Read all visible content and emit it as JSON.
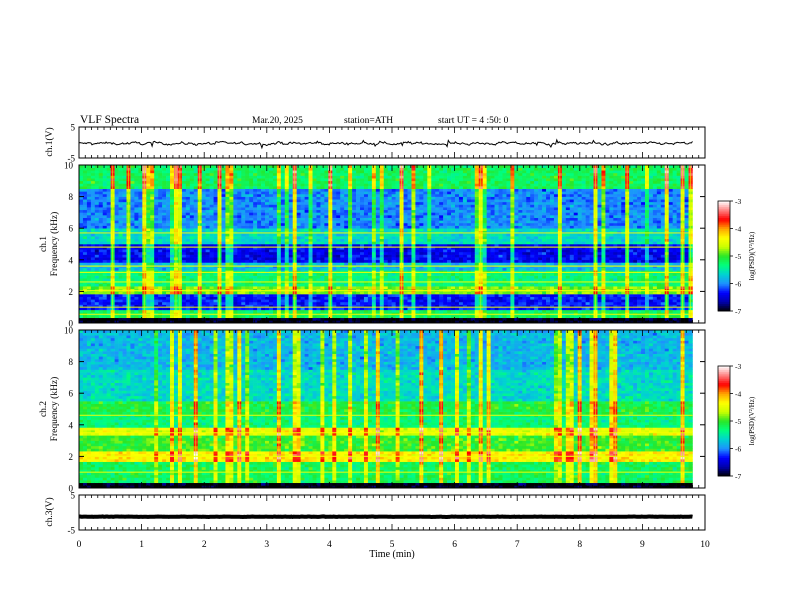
{
  "header": {
    "title": "VLF  Spectra",
    "date": "Mar.20, 2025",
    "station": "station=ATH",
    "start_time": "start  UT  =   4  :50: 0"
  },
  "chart_data": [
    {
      "type": "line",
      "panel": "ch1-waveform",
      "ylabel": "ch.1(V)",
      "ylim": [
        -5,
        5
      ],
      "yticks": [
        "5",
        "-5"
      ],
      "xlim": [
        0,
        10
      ],
      "series": [
        {
          "x_range": [
            0,
            9.8
          ],
          "typical_y": -0.3,
          "spread": 1.5
        }
      ]
    },
    {
      "type": "heatmap",
      "panel": "ch1-spectrogram",
      "ylabel": "ch.1\nFrequency  (kHz)",
      "ylim": [
        0,
        10
      ],
      "yticks": [
        "0",
        "2",
        "4",
        "6",
        "8",
        "10"
      ],
      "xlim": [
        0,
        10
      ],
      "data_x_range": [
        0,
        9.8
      ],
      "colorbar": {
        "label": "log(PSD)(V²/Hz)",
        "range": [
          -7,
          -3
        ],
        "ticks": [
          "-3",
          "-4",
          "-5",
          "-6",
          "-7"
        ]
      },
      "band_levels_log_psd": [
        {
          "f": [
            0.0,
            0.3
          ],
          "level": -7.0
        },
        {
          "f": [
            0.3,
            0.9
          ],
          "level": -5.2
        },
        {
          "f": [
            0.9,
            1.9
          ],
          "level": -6.3
        },
        {
          "f": [
            1.9,
            2.3
          ],
          "level": -4.8
        },
        {
          "f": [
            2.3,
            3.3
          ],
          "level": -5.3
        },
        {
          "f": [
            3.3,
            3.9
          ],
          "level": -5.8
        },
        {
          "f": [
            3.9,
            5.0
          ],
          "level": -6.4
        },
        {
          "f": [
            5.0,
            6.0
          ],
          "level": -5.6
        },
        {
          "f": [
            6.0,
            8.5
          ],
          "level": -6.0
        },
        {
          "f": [
            8.5,
            10.0
          ],
          "level": -5.2
        }
      ],
      "lines_khz": [
        0.55,
        1.0,
        2.05,
        2.6,
        3.2,
        3.6,
        4.8,
        5.7
      ]
    },
    {
      "type": "heatmap",
      "panel": "ch2-spectrogram",
      "ylabel": "ch.2\nFrequency  (kHz)",
      "ylim": [
        0,
        10
      ],
      "yticks": [
        "0",
        "2",
        "4",
        "6",
        "8",
        "10"
      ],
      "xlim": [
        0,
        10
      ],
      "data_x_range": [
        0,
        9.8
      ],
      "colorbar": {
        "label": "log(PSD)(V²/Hz)",
        "range": [
          -7,
          -3
        ],
        "ticks": [
          "-3",
          "-4",
          "-5",
          "-6",
          "-7"
        ]
      },
      "band_levels_log_psd": [
        {
          "f": [
            0.0,
            0.3
          ],
          "level": -7.0
        },
        {
          "f": [
            0.3,
            1.7
          ],
          "level": -5.2
        },
        {
          "f": [
            1.7,
            2.4
          ],
          "level": -4.3
        },
        {
          "f": [
            2.4,
            3.4
          ],
          "level": -5.0
        },
        {
          "f": [
            3.4,
            3.8
          ],
          "level": -4.5
        },
        {
          "f": [
            3.8,
            4.6
          ],
          "level": -5.3
        },
        {
          "f": [
            4.6,
            5.5
          ],
          "level": -5.1
        },
        {
          "f": [
            5.5,
            7.5
          ],
          "level": -5.6
        },
        {
          "f": [
            7.5,
            10.0
          ],
          "level": -5.8
        }
      ],
      "lines_khz": [
        1.0,
        2.0,
        3.5,
        4.6
      ]
    },
    {
      "type": "line",
      "panel": "ch3-waveform",
      "ylabel": "ch.3(V)",
      "ylim": [
        -5,
        5
      ],
      "yticks": [
        "5",
        "-5"
      ],
      "xlim": [
        0,
        10
      ],
      "series": [
        {
          "x_range": [
            0,
            9.8
          ],
          "typical_y": -1.2,
          "spread": 0.2
        }
      ]
    }
  ],
  "x_axis": {
    "label": "Time  (min)",
    "ticks": [
      "0",
      "1",
      "2",
      "3",
      "4",
      "5",
      "6",
      "7",
      "8",
      "9",
      "10"
    ]
  },
  "colors": {
    "frame": "#000000",
    "colormap": [
      "#000000",
      "#0000aa",
      "#0000ff",
      "#1e90ff",
      "#00d2d2",
      "#00ff7f",
      "#28e628",
      "#c8ff00",
      "#ffff00",
      "#ffa500",
      "#ff0000",
      "#ff8080",
      "#ffffff"
    ]
  }
}
